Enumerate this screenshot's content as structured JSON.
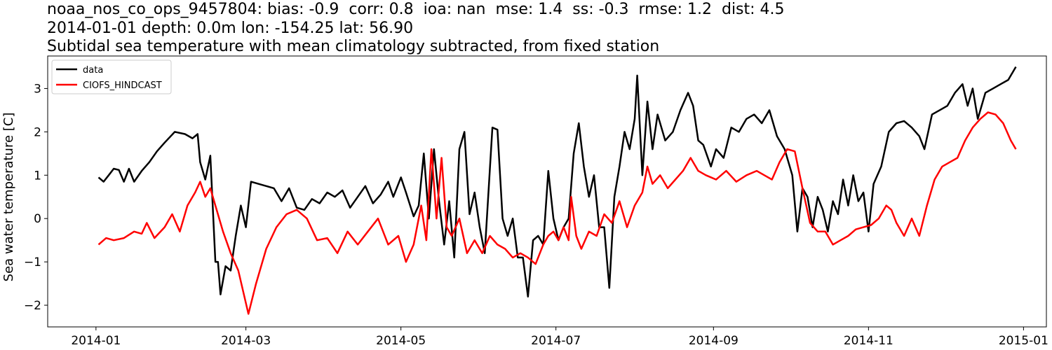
{
  "chart_data": {
    "type": "line",
    "title_lines": [
      "noaa_nos_co_ops_9457804: bias: -0.9  corr: 0.8  ioa: nan  mse: 1.4  ss: -0.3  rmse: 1.2  dist: 4.5",
      "2014-01-01 depth: 0.0m lon: -154.25 lat: 56.90",
      "Subtidal sea temperature with mean climatology subtracted, from fixed station"
    ],
    "ylabel": "Sea water temperature [C]",
    "xlim": [
      "2013-12-13",
      "2015-01-10"
    ],
    "ylim": [
      -2.5,
      3.75
    ],
    "x_ticks": [
      "2014-01-01",
      "2014-03-01",
      "2014-05-01",
      "2014-07-01",
      "2014-09-01",
      "2014-11-01",
      "2015-01-01"
    ],
    "x_tick_labels": [
      "2014-01",
      "2014-03",
      "2014-05",
      "2014-07",
      "2014-09",
      "2014-11",
      "2015-01"
    ],
    "y_ticks": [
      -2,
      -1,
      0,
      1,
      2,
      3
    ],
    "y_tick_labels": [
      "−2",
      "−1",
      "0",
      "1",
      "2",
      "3"
    ],
    "legend": {
      "position": "upper-left",
      "entries": [
        "data",
        "CIOFS_HINDCAST"
      ]
    },
    "grid": false,
    "series": [
      {
        "name": "data",
        "color": "#000000",
        "points": [
          [
            "2014-01-02",
            0.95
          ],
          [
            "2014-01-04",
            0.85
          ],
          [
            "2014-01-06",
            1.0
          ],
          [
            "2014-01-08",
            1.15
          ],
          [
            "2014-01-10",
            1.12
          ],
          [
            "2014-01-12",
            0.85
          ],
          [
            "2014-01-14",
            1.15
          ],
          [
            "2014-01-16",
            0.85
          ],
          [
            "2014-01-19",
            1.1
          ],
          [
            "2014-01-22",
            1.3
          ],
          [
            "2014-01-25",
            1.55
          ],
          [
            "2014-01-28",
            1.75
          ],
          [
            "2014-02-01",
            2.0
          ],
          [
            "2014-02-05",
            1.95
          ],
          [
            "2014-02-08",
            1.85
          ],
          [
            "2014-02-10",
            1.95
          ],
          [
            "2014-02-11",
            1.3
          ],
          [
            "2014-02-13",
            0.9
          ],
          [
            "2014-02-15",
            1.45
          ],
          [
            "2014-02-17",
            -1.0
          ],
          [
            "2014-02-18",
            -1.0
          ],
          [
            "2014-02-19",
            -1.75
          ],
          [
            "2014-02-21",
            -1.1
          ],
          [
            "2014-02-23",
            -1.2
          ],
          [
            "2014-02-25",
            -0.4
          ],
          [
            "2014-02-27",
            0.3
          ],
          [
            "2014-03-01",
            -0.2
          ],
          [
            "2014-03-03",
            0.85
          ],
          [
            "2014-03-06",
            0.8
          ],
          [
            "2014-03-09",
            0.75
          ],
          [
            "2014-03-12",
            0.7
          ],
          [
            "2014-03-15",
            0.4
          ],
          [
            "2014-03-18",
            0.7
          ],
          [
            "2014-03-21",
            0.25
          ],
          [
            "2014-03-24",
            0.2
          ],
          [
            "2014-03-27",
            0.45
          ],
          [
            "2014-03-30",
            0.35
          ],
          [
            "2014-04-02",
            0.6
          ],
          [
            "2014-04-05",
            0.5
          ],
          [
            "2014-04-08",
            0.65
          ],
          [
            "2014-04-11",
            0.25
          ],
          [
            "2014-04-14",
            0.5
          ],
          [
            "2014-04-17",
            0.75
          ],
          [
            "2014-04-20",
            0.35
          ],
          [
            "2014-04-23",
            0.55
          ],
          [
            "2014-04-26",
            0.85
          ],
          [
            "2014-04-28",
            0.5
          ],
          [
            "2014-05-01",
            0.95
          ],
          [
            "2014-05-03",
            0.6
          ],
          [
            "2014-05-06",
            0.05
          ],
          [
            "2014-05-08",
            0.3
          ],
          [
            "2014-05-10",
            1.5
          ],
          [
            "2014-05-12",
            0.0
          ],
          [
            "2014-05-14",
            1.6
          ],
          [
            "2014-05-16",
            0.4
          ],
          [
            "2014-05-18",
            -0.6
          ],
          [
            "2014-05-20",
            0.4
          ],
          [
            "2014-05-22",
            -0.9
          ],
          [
            "2014-05-24",
            1.6
          ],
          [
            "2014-05-26",
            2.0
          ],
          [
            "2014-05-28",
            0.1
          ],
          [
            "2014-05-30",
            0.6
          ],
          [
            "2014-06-01",
            -0.2
          ],
          [
            "2014-06-03",
            -0.8
          ],
          [
            "2014-06-06",
            2.1
          ],
          [
            "2014-06-08",
            2.05
          ],
          [
            "2014-06-10",
            0.0
          ],
          [
            "2014-06-12",
            -0.4
          ],
          [
            "2014-06-14",
            0.0
          ],
          [
            "2014-06-16",
            -0.9
          ],
          [
            "2014-06-18",
            -0.9
          ],
          [
            "2014-06-20",
            -1.8
          ],
          [
            "2014-06-22",
            -0.5
          ],
          [
            "2014-06-24",
            -0.4
          ],
          [
            "2014-06-26",
            -0.6
          ],
          [
            "2014-06-28",
            1.1
          ],
          [
            "2014-06-30",
            0.0
          ],
          [
            "2014-07-02",
            -0.5
          ],
          [
            "2014-07-04",
            -0.2
          ],
          [
            "2014-07-06",
            0.0
          ],
          [
            "2014-07-08",
            1.5
          ],
          [
            "2014-07-10",
            2.2
          ],
          [
            "2014-07-12",
            1.2
          ],
          [
            "2014-07-14",
            0.5
          ],
          [
            "2014-07-16",
            1.0
          ],
          [
            "2014-07-18",
            -0.2
          ],
          [
            "2014-07-20",
            -0.2
          ],
          [
            "2014-07-22",
            -1.6
          ],
          [
            "2014-07-24",
            0.5
          ],
          [
            "2014-07-26",
            1.2
          ],
          [
            "2014-07-28",
            2.0
          ],
          [
            "2014-07-30",
            1.6
          ],
          [
            "2014-08-01",
            2.3
          ],
          [
            "2014-08-02",
            3.3
          ],
          [
            "2014-08-04",
            1.0
          ],
          [
            "2014-08-06",
            2.7
          ],
          [
            "2014-08-08",
            1.6
          ],
          [
            "2014-08-10",
            2.4
          ],
          [
            "2014-08-13",
            1.8
          ],
          [
            "2014-08-16",
            2.0
          ],
          [
            "2014-08-19",
            2.5
          ],
          [
            "2014-08-22",
            2.9
          ],
          [
            "2014-08-24",
            2.6
          ],
          [
            "2014-08-26",
            1.8
          ],
          [
            "2014-08-28",
            1.7
          ],
          [
            "2014-08-31",
            1.2
          ],
          [
            "2014-09-02",
            1.6
          ],
          [
            "2014-09-05",
            1.4
          ],
          [
            "2014-09-08",
            2.1
          ],
          [
            "2014-09-11",
            2.0
          ],
          [
            "2014-09-14",
            2.3
          ],
          [
            "2014-09-17",
            2.4
          ],
          [
            "2014-09-20",
            2.2
          ],
          [
            "2014-09-23",
            2.5
          ],
          [
            "2014-09-26",
            1.9
          ],
          [
            "2014-09-29",
            1.6
          ],
          [
            "2014-10-02",
            1.0
          ],
          [
            "2014-10-04",
            -0.3
          ],
          [
            "2014-10-06",
            0.7
          ],
          [
            "2014-10-08",
            0.5
          ],
          [
            "2014-10-10",
            -0.2
          ],
          [
            "2014-10-12",
            0.5
          ],
          [
            "2014-10-14",
            0.2
          ],
          [
            "2014-10-16",
            -0.3
          ],
          [
            "2014-10-18",
            0.4
          ],
          [
            "2014-10-20",
            0.1
          ],
          [
            "2014-10-22",
            0.9
          ],
          [
            "2014-10-24",
            0.3
          ],
          [
            "2014-10-26",
            1.0
          ],
          [
            "2014-10-28",
            0.4
          ],
          [
            "2014-10-30",
            0.6
          ],
          [
            "2014-11-01",
            -0.3
          ],
          [
            "2014-11-03",
            0.8
          ],
          [
            "2014-11-06",
            1.2
          ],
          [
            "2014-11-09",
            2.0
          ],
          [
            "2014-11-12",
            2.2
          ],
          [
            "2014-11-15",
            2.25
          ],
          [
            "2014-11-18",
            2.1
          ],
          [
            "2014-11-21",
            1.9
          ],
          [
            "2014-11-23",
            1.6
          ],
          [
            "2014-11-26",
            2.4
          ],
          [
            "2014-11-29",
            2.5
          ],
          [
            "2014-12-02",
            2.6
          ],
          [
            "2014-12-05",
            2.9
          ],
          [
            "2014-12-08",
            3.1
          ],
          [
            "2014-12-10",
            2.6
          ],
          [
            "2014-12-12",
            3.0
          ],
          [
            "2014-12-14",
            2.3
          ],
          [
            "2014-12-17",
            2.9
          ],
          [
            "2014-12-20",
            3.0
          ],
          [
            "2014-12-23",
            3.1
          ],
          [
            "2014-12-26",
            3.2
          ],
          [
            "2014-12-29",
            3.5
          ]
        ]
      },
      {
        "name": "CIOFS_HINDCAST",
        "color": "#ff0000",
        "points": [
          [
            "2014-01-02",
            -0.6
          ],
          [
            "2014-01-05",
            -0.45
          ],
          [
            "2014-01-08",
            -0.5
          ],
          [
            "2014-01-12",
            -0.45
          ],
          [
            "2014-01-16",
            -0.3
          ],
          [
            "2014-01-19",
            -0.35
          ],
          [
            "2014-01-21",
            -0.1
          ],
          [
            "2014-01-24",
            -0.45
          ],
          [
            "2014-01-28",
            -0.2
          ],
          [
            "2014-01-31",
            0.1
          ],
          [
            "2014-02-03",
            -0.3
          ],
          [
            "2014-02-06",
            0.3
          ],
          [
            "2014-02-09",
            0.6
          ],
          [
            "2014-02-11",
            0.85
          ],
          [
            "2014-02-13",
            0.5
          ],
          [
            "2014-02-15",
            0.7
          ],
          [
            "2014-02-17",
            0.3
          ],
          [
            "2014-02-20",
            -0.3
          ],
          [
            "2014-02-23",
            -0.8
          ],
          [
            "2014-02-26",
            -1.2
          ],
          [
            "2014-02-28",
            -1.7
          ],
          [
            "2014-03-02",
            -2.2
          ],
          [
            "2014-03-05",
            -1.5
          ],
          [
            "2014-03-09",
            -0.7
          ],
          [
            "2014-03-13",
            -0.2
          ],
          [
            "2014-03-17",
            0.1
          ],
          [
            "2014-03-21",
            0.2
          ],
          [
            "2014-03-25",
            0.0
          ],
          [
            "2014-03-29",
            -0.5
          ],
          [
            "2014-04-02",
            -0.45
          ],
          [
            "2014-04-06",
            -0.8
          ],
          [
            "2014-04-10",
            -0.3
          ],
          [
            "2014-04-14",
            -0.6
          ],
          [
            "2014-04-18",
            -0.3
          ],
          [
            "2014-04-22",
            0.0
          ],
          [
            "2014-04-26",
            -0.6
          ],
          [
            "2014-04-30",
            -0.4
          ],
          [
            "2014-05-03",
            -1.0
          ],
          [
            "2014-05-06",
            -0.6
          ],
          [
            "2014-05-09",
            0.3
          ],
          [
            "2014-05-11",
            -0.5
          ],
          [
            "2014-05-13",
            1.6
          ],
          [
            "2014-05-15",
            0.0
          ],
          [
            "2014-05-17",
            1.4
          ],
          [
            "2014-05-19",
            -0.2
          ],
          [
            "2014-05-21",
            -0.4
          ],
          [
            "2014-05-24",
            0.0
          ],
          [
            "2014-05-27",
            -0.8
          ],
          [
            "2014-05-30",
            -0.5
          ],
          [
            "2014-06-02",
            -0.8
          ],
          [
            "2014-06-05",
            -0.4
          ],
          [
            "2014-06-08",
            -0.6
          ],
          [
            "2014-06-11",
            -0.7
          ],
          [
            "2014-06-14",
            -0.9
          ],
          [
            "2014-06-17",
            -0.8
          ],
          [
            "2014-06-20",
            -0.9
          ],
          [
            "2014-06-23",
            -1.05
          ],
          [
            "2014-06-26",
            -0.6
          ],
          [
            "2014-06-28",
            -0.4
          ],
          [
            "2014-06-30",
            -0.3
          ],
          [
            "2014-07-02",
            -0.5
          ],
          [
            "2014-07-04",
            -0.2
          ],
          [
            "2014-07-06",
            -0.5
          ],
          [
            "2014-07-07",
            0.5
          ],
          [
            "2014-07-09",
            -0.4
          ],
          [
            "2014-07-11",
            -0.7
          ],
          [
            "2014-07-14",
            -0.3
          ],
          [
            "2014-07-17",
            -0.4
          ],
          [
            "2014-07-20",
            0.1
          ],
          [
            "2014-07-23",
            -0.1
          ],
          [
            "2014-07-26",
            0.4
          ],
          [
            "2014-07-29",
            -0.2
          ],
          [
            "2014-08-01",
            0.3
          ],
          [
            "2014-08-04",
            0.6
          ],
          [
            "2014-08-06",
            1.2
          ],
          [
            "2014-08-08",
            0.8
          ],
          [
            "2014-08-11",
            1.0
          ],
          [
            "2014-08-14",
            0.7
          ],
          [
            "2014-08-17",
            0.9
          ],
          [
            "2014-08-20",
            1.1
          ],
          [
            "2014-08-23",
            1.4
          ],
          [
            "2014-08-26",
            1.1
          ],
          [
            "2014-08-29",
            1.0
          ],
          [
            "2014-09-02",
            0.9
          ],
          [
            "2014-09-06",
            1.1
          ],
          [
            "2014-09-10",
            0.85
          ],
          [
            "2014-09-14",
            1.0
          ],
          [
            "2014-09-18",
            1.1
          ],
          [
            "2014-09-21",
            1.0
          ],
          [
            "2014-09-24",
            0.9
          ],
          [
            "2014-09-27",
            1.3
          ],
          [
            "2014-09-30",
            1.6
          ],
          [
            "2014-10-03",
            1.55
          ],
          [
            "2014-10-06",
            0.7
          ],
          [
            "2014-10-09",
            -0.1
          ],
          [
            "2014-10-12",
            -0.3
          ],
          [
            "2014-10-15",
            -0.3
          ],
          [
            "2014-10-18",
            -0.6
          ],
          [
            "2014-10-21",
            -0.5
          ],
          [
            "2014-10-24",
            -0.4
          ],
          [
            "2014-10-27",
            -0.25
          ],
          [
            "2014-10-30",
            -0.2
          ],
          [
            "2014-11-02",
            -0.15
          ],
          [
            "2014-11-05",
            0.0
          ],
          [
            "2014-11-08",
            0.3
          ],
          [
            "2014-11-10",
            0.2
          ],
          [
            "2014-11-12",
            -0.1
          ],
          [
            "2014-11-15",
            -0.4
          ],
          [
            "2014-11-18",
            0.0
          ],
          [
            "2014-11-21",
            -0.4
          ],
          [
            "2014-11-24",
            0.3
          ],
          [
            "2014-11-27",
            0.9
          ],
          [
            "2014-11-30",
            1.2
          ],
          [
            "2014-12-03",
            1.3
          ],
          [
            "2014-12-06",
            1.4
          ],
          [
            "2014-12-09",
            1.8
          ],
          [
            "2014-12-12",
            2.1
          ],
          [
            "2014-12-15",
            2.3
          ],
          [
            "2014-12-18",
            2.45
          ],
          [
            "2014-12-21",
            2.4
          ],
          [
            "2014-12-24",
            2.2
          ],
          [
            "2014-12-27",
            1.8
          ],
          [
            "2014-12-29",
            1.6
          ]
        ]
      }
    ]
  }
}
